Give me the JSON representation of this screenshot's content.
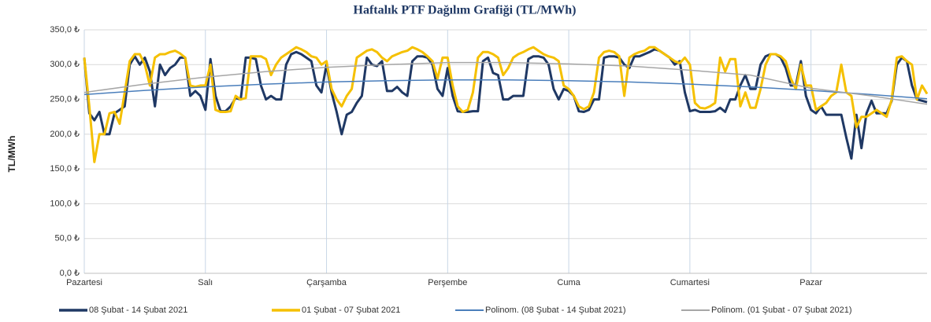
{
  "chart_data": {
    "type": "line",
    "title": "Haftalık PTF Dağılım Grafiği (TL/MWh)",
    "ylabel": "TL/MWh",
    "xlim": [
      0,
      167
    ],
    "xticks": [
      {
        "value": 0,
        "label": "Pazartesi"
      },
      {
        "value": 24,
        "label": "Salı"
      },
      {
        "value": 48,
        "label": "Çarşamba"
      },
      {
        "value": 72,
        "label": "Perşembe"
      },
      {
        "value": 96,
        "label": "Cuma"
      },
      {
        "value": 120,
        "label": "Cumartesi"
      },
      {
        "value": 144,
        "label": "Pazar"
      }
    ],
    "ylim": [
      0,
      350
    ],
    "yticks": [
      {
        "value": 0,
        "label": "0,0 ₺"
      },
      {
        "value": 50,
        "label": "50,0 ₺"
      },
      {
        "value": 100,
        "label": "100,0 ₺"
      },
      {
        "value": 150,
        "label": "150,0 ₺"
      },
      {
        "value": 200,
        "label": "200,0 ₺"
      },
      {
        "value": 250,
        "label": "250,0 ₺"
      },
      {
        "value": 300,
        "label": "300,0 ₺"
      },
      {
        "value": 350,
        "label": "350,0 ₺"
      }
    ],
    "grid": true,
    "legend": "bottom",
    "series": [
      {
        "name": "08 Şubat - 14 Şubat 2021",
        "color": "#1f3864",
        "width": 3,
        "values": [
          310,
          230,
          220,
          232,
          200,
          200,
          230,
          235,
          240,
          300,
          312,
          300,
          310,
          290,
          240,
          300,
          285,
          295,
          300,
          310,
          310,
          255,
          262,
          255,
          235,
          308,
          255,
          233,
          233,
          240,
          252,
          250,
          310,
          310,
          308,
          270,
          250,
          255,
          250,
          250,
          300,
          315,
          318,
          315,
          310,
          305,
          270,
          260,
          300,
          260,
          232,
          200,
          228,
          232,
          245,
          255,
          310,
          300,
          298,
          305,
          262,
          262,
          268,
          260,
          255,
          305,
          312,
          312,
          310,
          300,
          265,
          255,
          295,
          255,
          233,
          232,
          232,
          233,
          233,
          305,
          310,
          288,
          285,
          250,
          250,
          255,
          255,
          255,
          308,
          312,
          312,
          310,
          300,
          265,
          250,
          265,
          262,
          255,
          233,
          232,
          235,
          250,
          250,
          310,
          312,
          312,
          310,
          300,
          295,
          312,
          312,
          315,
          318,
          322,
          320,
          315,
          310,
          300,
          305,
          260,
          233,
          235,
          232,
          232,
          232,
          233,
          238,
          232,
          250,
          250,
          270,
          285,
          265,
          265,
          300,
          312,
          315,
          315,
          310,
          295,
          270,
          270,
          305,
          255,
          235,
          230,
          240,
          228,
          228,
          228,
          228,
          195,
          165,
          228,
          180,
          230,
          248,
          230,
          230,
          230,
          248,
          300,
          310,
          305,
          270,
          250,
          248,
          246
        ]
      },
      {
        "name": "01 Şubat - 07 Şubat 2021",
        "color": "#f5c000",
        "width": 3,
        "values": [
          310,
          240,
          160,
          200,
          200,
          230,
          232,
          215,
          260,
          305,
          315,
          315,
          300,
          270,
          310,
          315,
          315,
          318,
          320,
          316,
          310,
          270,
          268,
          270,
          270,
          300,
          235,
          232,
          232,
          233,
          255,
          250,
          252,
          312,
          312,
          312,
          308,
          285,
          300,
          310,
          315,
          320,
          325,
          322,
          318,
          312,
          310,
          300,
          305,
          265,
          250,
          240,
          255,
          265,
          310,
          315,
          320,
          322,
          318,
          310,
          305,
          312,
          315,
          318,
          320,
          325,
          322,
          318,
          312,
          305,
          280,
          310,
          310,
          270,
          240,
          232,
          235,
          260,
          310,
          318,
          318,
          315,
          310,
          285,
          295,
          310,
          315,
          318,
          322,
          325,
          320,
          315,
          312,
          310,
          305,
          270,
          265,
          255,
          240,
          236,
          240,
          260,
          310,
          318,
          320,
          318,
          312,
          255,
          310,
          315,
          318,
          320,
          325,
          325,
          320,
          315,
          310,
          305,
          302,
          310,
          300,
          245,
          238,
          237,
          240,
          245,
          310,
          290,
          308,
          308,
          240,
          260,
          238,
          238,
          265,
          300,
          315,
          315,
          312,
          305,
          280,
          265,
          300,
          270,
          270,
          235,
          240,
          245,
          255,
          260,
          300,
          260,
          255,
          210,
          225,
          225,
          230,
          235,
          230,
          225,
          250,
          310,
          312,
          305,
          300,
          250,
          270,
          258
        ]
      },
      {
        "name": "Polinom. (08 Şubat - 14 Şubat 2021)",
        "color": "#4a7ebb",
        "width": 1.5,
        "x": [
          0,
          12,
          24,
          36,
          48,
          60,
          72,
          84,
          96,
          108,
          120,
          132,
          144,
          156,
          167
        ],
        "values": [
          257,
          263,
          268,
          272,
          275,
          277,
          278,
          278,
          277,
          275,
          272,
          268,
          263,
          257,
          251
        ]
      },
      {
        "name": "Polinom. (01 Şubat - 07 Şubat 2021)",
        "color": "#a6a6a6",
        "width": 1.5,
        "x": [
          0,
          12,
          24,
          36,
          48,
          60,
          72,
          84,
          96,
          108,
          120,
          132,
          144,
          156,
          167
        ],
        "values": [
          260,
          272,
          282,
          290,
          296,
          300,
          303,
          303,
          301,
          298,
          292,
          285,
          266,
          255,
          243
        ]
      }
    ]
  }
}
